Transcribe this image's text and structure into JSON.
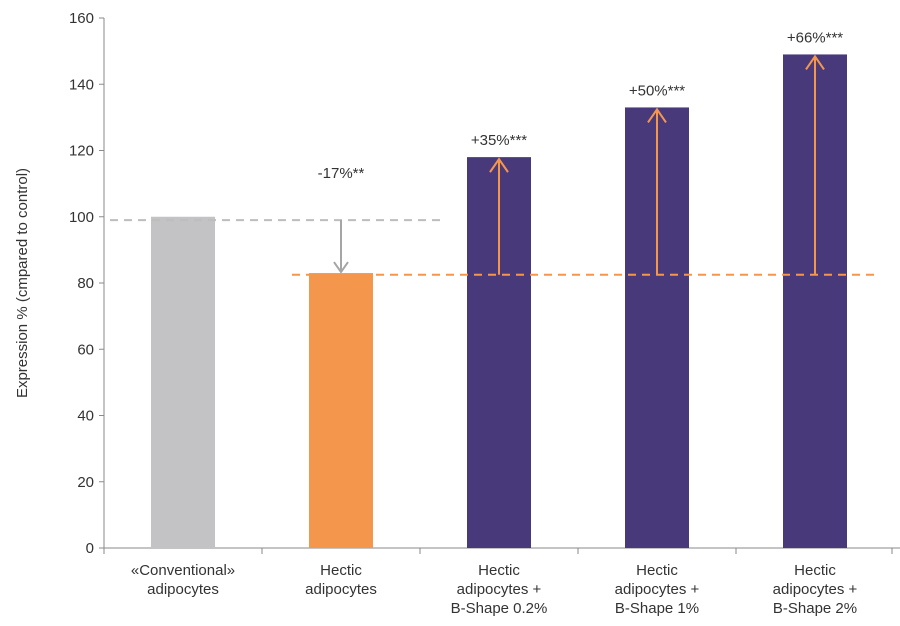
{
  "chart_data": {
    "type": "bar",
    "ylabel": "Expression % (cmpared to control)",
    "xlabel": "",
    "title": "",
    "ylim": [
      0,
      160
    ],
    "yticks": [
      0,
      20,
      40,
      60,
      80,
      100,
      120,
      140,
      160
    ],
    "grid": false,
    "categories": [
      [
        "«Conventional»",
        "adipocytes"
      ],
      [
        "Hectic",
        "adipocytes"
      ],
      [
        "Hectic",
        "adipocytes +",
        "B-Shape 0.2%"
      ],
      [
        "Hectic",
        "adipocytes +",
        "B-Shape 1%"
      ],
      [
        "Hectic",
        "adipocytes +",
        "B-Shape 2%"
      ]
    ],
    "values": [
      100,
      83,
      118,
      133,
      149
    ],
    "bar_colors": [
      "#c3c3c6",
      "#f5964d",
      "#483a7a",
      "#483a7a",
      "#483a7a"
    ],
    "annotations": [
      "",
      "-17%**",
      "+35%***",
      "+50%***",
      "+66%***"
    ],
    "reference_lines": [
      {
        "value": 99,
        "color": "#bdbdbd",
        "from_category": 0,
        "to_category": 2
      },
      {
        "value": 82.5,
        "color": "#f5964d",
        "from_category": 1,
        "to_category": 4
      }
    ],
    "arrow_colors": {
      "down": "#a5a5a5",
      "up": "#f5964d"
    }
  }
}
